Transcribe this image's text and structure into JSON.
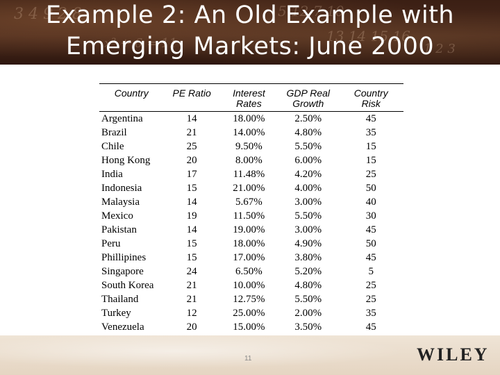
{
  "slide": {
    "title_line1": "Example 2: An Old Example with",
    "title_line2": "Emerging Markets: June 2000",
    "page_number": "11",
    "publisher_logo_text": "WILEY"
  },
  "table": {
    "headers": [
      [
        "Country"
      ],
      [
        "PE Ratio"
      ],
      [
        "Interest",
        "Rates"
      ],
      [
        "GDP Real",
        "Growth"
      ],
      [
        "Country",
        "Risk"
      ]
    ],
    "rows": [
      [
        "Argentina",
        "14",
        "18.00%",
        "2.50%",
        "45"
      ],
      [
        "Brazil",
        "21",
        "14.00%",
        "4.80%",
        "35"
      ],
      [
        "Chile",
        "25",
        "9.50%",
        "5.50%",
        "15"
      ],
      [
        "Hong Kong",
        "20",
        "8.00%",
        "6.00%",
        "15"
      ],
      [
        "India",
        "17",
        "11.48%",
        "4.20%",
        "25"
      ],
      [
        "Indonesia",
        "15",
        "21.00%",
        "4.00%",
        "50"
      ],
      [
        "Malaysia",
        "14",
        "5.67%",
        "3.00%",
        "40"
      ],
      [
        "Mexico",
        "19",
        "11.50%",
        "5.50%",
        "30"
      ],
      [
        "Pakistan",
        "14",
        "19.00%",
        "3.00%",
        "45"
      ],
      [
        "Peru",
        "15",
        "18.00%",
        "4.90%",
        "50"
      ],
      [
        "Phillipines",
        "15",
        "17.00%",
        "3.80%",
        "45"
      ],
      [
        "Singapore",
        "24",
        "6.50%",
        "5.20%",
        "5"
      ],
      [
        "South Korea",
        "21",
        "10.00%",
        "4.80%",
        "25"
      ],
      [
        "Thailand",
        "21",
        "12.75%",
        "5.50%",
        "25"
      ],
      [
        "Turkey",
        "12",
        "25.00%",
        "2.00%",
        "35"
      ],
      [
        "Venezuela",
        "20",
        "15.00%",
        "3.50%",
        "45"
      ]
    ]
  }
}
